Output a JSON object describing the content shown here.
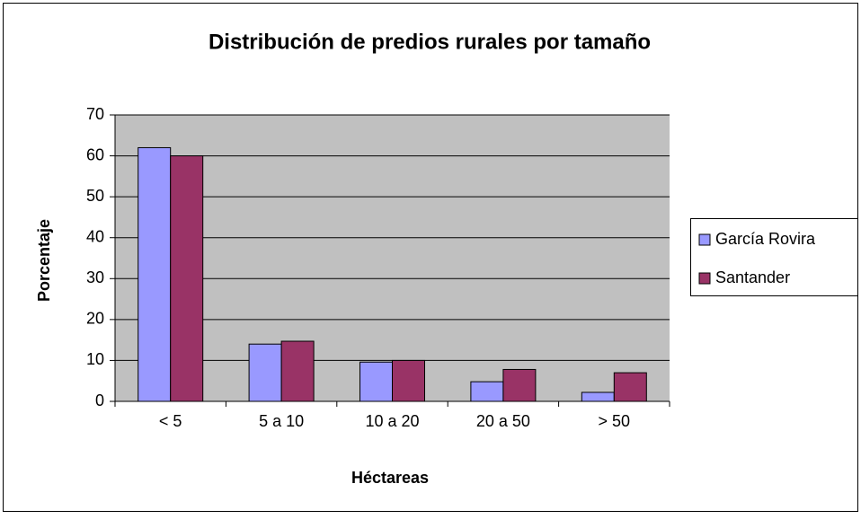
{
  "chart_data": {
    "type": "bar",
    "title": "Distribución de predios rurales por tamaño",
    "xlabel": "Héctareas",
    "ylabel": "Porcentaje",
    "categories": [
      "< 5",
      "5 a 10",
      "10 a 20",
      "20 a 50",
      "> 50"
    ],
    "series": [
      {
        "name": "García Rovira",
        "color": "#9999ff",
        "values": [
          62,
          14,
          9.6,
          4.8,
          2.2
        ]
      },
      {
        "name": "Santander",
        "color": "#993366",
        "values": [
          60,
          14.7,
          10,
          7.8,
          7
        ]
      }
    ],
    "ylim": [
      0,
      70
    ],
    "yticks": [
      0,
      10,
      20,
      30,
      40,
      50,
      60,
      70
    ],
    "grid": true,
    "legend": "right",
    "plot_background": "#c0c0c0"
  }
}
